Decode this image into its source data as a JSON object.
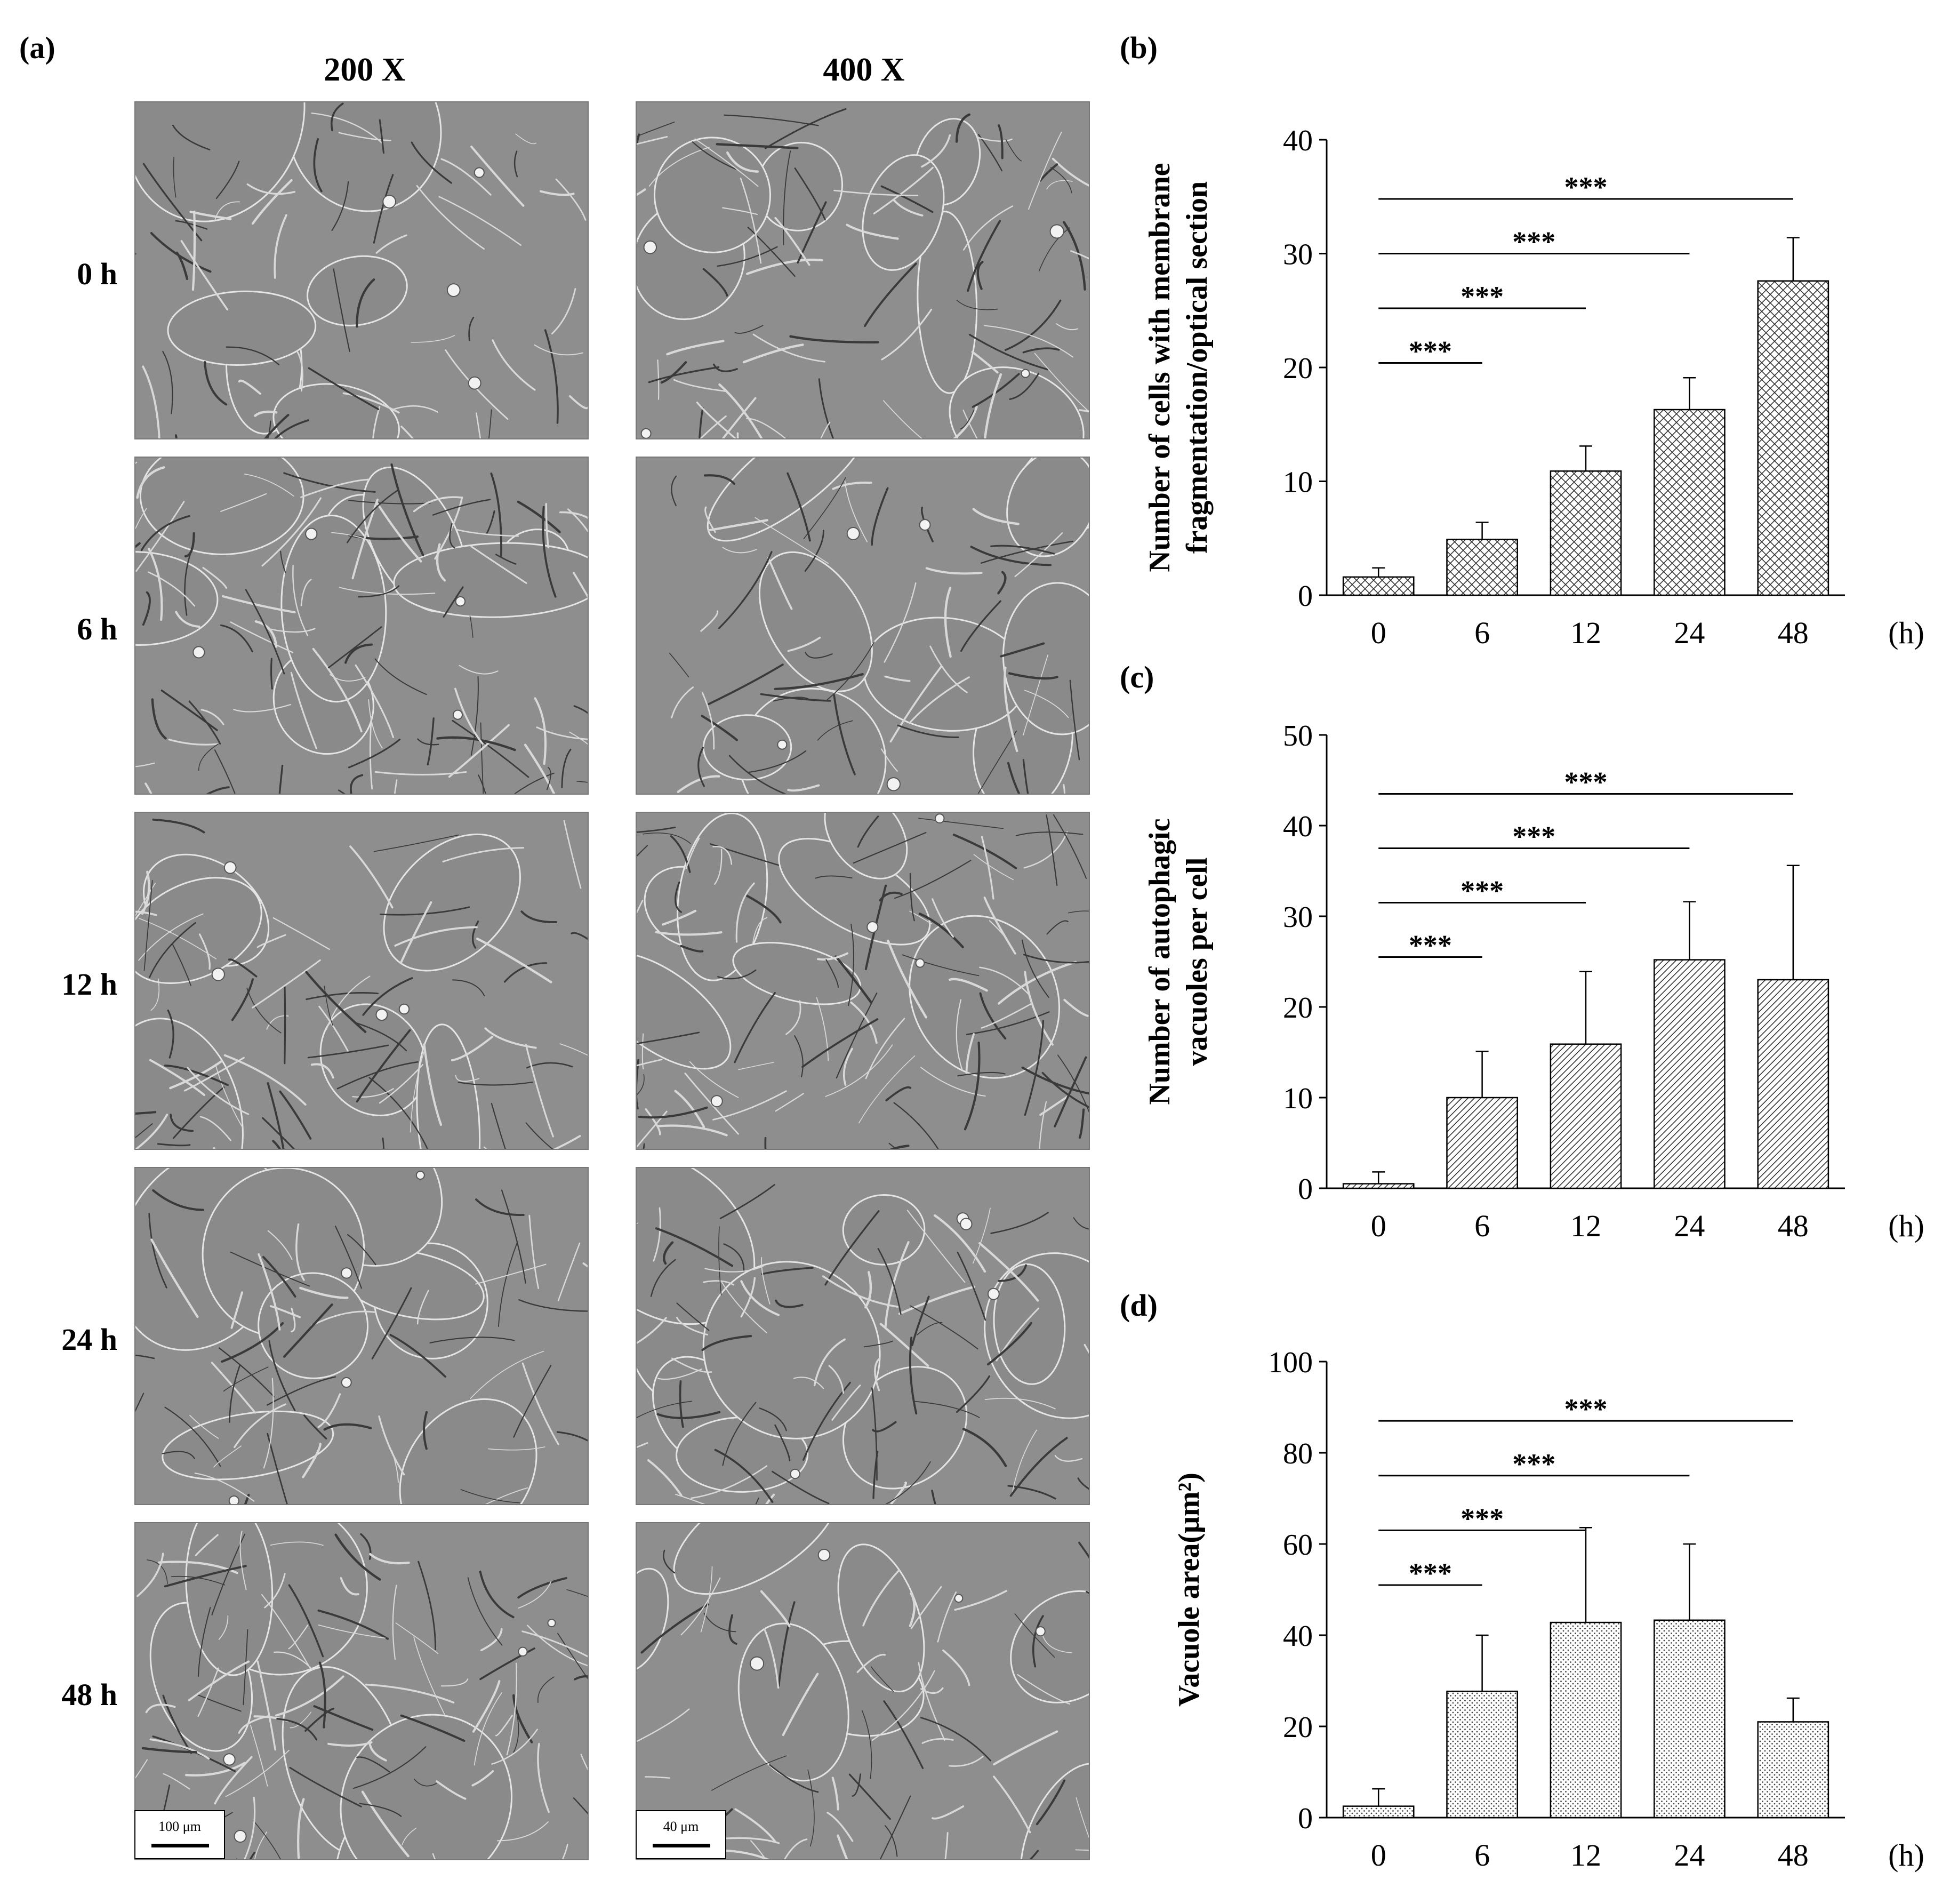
{
  "figure": {
    "panel_labels": {
      "a": "(a)",
      "b": "(b)",
      "c": "(c)",
      "d": "(d)"
    },
    "micrographs": {
      "column_headers": [
        "200 X",
        "400 X"
      ],
      "row_labels": [
        "0 h",
        "6 h",
        "12 h",
        "24 h",
        "48 h"
      ],
      "scale_bars": {
        "low": "100 μm",
        "high": "40 μm"
      }
    }
  },
  "chart_data": [
    {
      "id": "b",
      "type": "bar",
      "categories": [
        "0",
        "6",
        "12",
        "24",
        "48"
      ],
      "values": [
        1.6,
        4.9,
        10.9,
        16.3,
        27.6
      ],
      "errors": [
        0.8,
        1.5,
        2.2,
        2.8,
        3.8
      ],
      "ylabel": [
        "Number of cells with membrane",
        "fragmentation/optical section"
      ],
      "xunit": "(h)",
      "ylim": [
        0,
        40
      ],
      "yticks": [
        "0",
        "10",
        "20",
        "30",
        "40"
      ],
      "pattern": "crosshatch",
      "significance": [
        {
          "from": "0",
          "to": "6",
          "label": "***"
        },
        {
          "from": "0",
          "to": "12",
          "label": "***"
        },
        {
          "from": "0",
          "to": "24",
          "label": "***"
        },
        {
          "from": "0",
          "to": "48",
          "label": "***"
        }
      ]
    },
    {
      "id": "c",
      "type": "bar",
      "categories": [
        "0",
        "6",
        "12",
        "24",
        "48"
      ],
      "values": [
        0.5,
        10.0,
        15.9,
        25.2,
        23.0
      ],
      "errors": [
        1.3,
        5.1,
        8.0,
        6.4,
        12.6
      ],
      "ylabel": [
        "Number of autophagic",
        "vacuoles per cell"
      ],
      "xunit": "(h)",
      "ylim": [
        0,
        50
      ],
      "yticks": [
        "0",
        "10",
        "20",
        "30",
        "40",
        "50"
      ],
      "pattern": "diagonal",
      "significance": [
        {
          "from": "0",
          "to": "6",
          "label": "***"
        },
        {
          "from": "0",
          "to": "12",
          "label": "***"
        },
        {
          "from": "0",
          "to": "24",
          "label": "***"
        },
        {
          "from": "0",
          "to": "48",
          "label": "***"
        }
      ]
    },
    {
      "id": "d",
      "type": "bar",
      "categories": [
        "0",
        "6",
        "12",
        "24",
        "48"
      ],
      "values": [
        2.5,
        27.7,
        42.8,
        43.3,
        21.0
      ],
      "errors": [
        3.8,
        12.3,
        20.8,
        16.7,
        5.2
      ],
      "ylabel": [
        "Vacuole area(μm²)"
      ],
      "xunit": "(h)",
      "ylim": [
        0,
        100
      ],
      "yticks": [
        "0",
        "20",
        "40",
        "60",
        "80",
        "100"
      ],
      "pattern": "dots",
      "significance": [
        {
          "from": "0",
          "to": "6",
          "label": "***"
        },
        {
          "from": "0",
          "to": "12",
          "label": "***"
        },
        {
          "from": "0",
          "to": "24",
          "label": "***"
        },
        {
          "from": "0",
          "to": "48",
          "label": "***"
        }
      ]
    }
  ]
}
